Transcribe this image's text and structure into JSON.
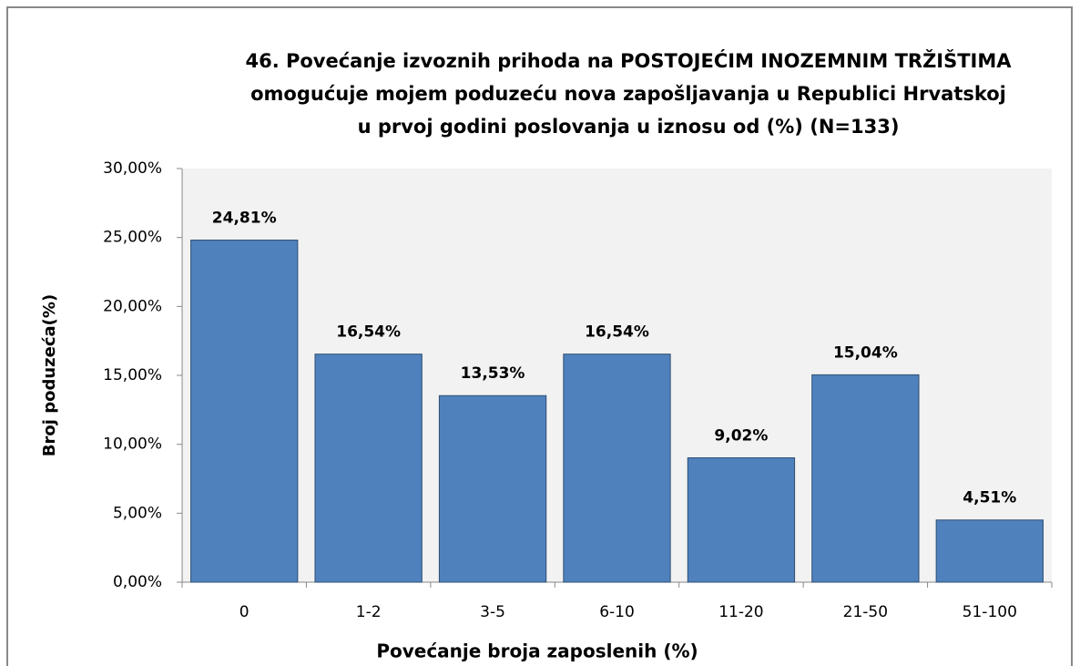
{
  "chart_data": {
    "type": "bar",
    "title": [
      "46. Povećanje izvoznih prihoda na POSTOJEĆIM INOZEMNIM TRŽIŠTIMA",
      "omogućuje mojem poduzeću nova zapošljavanja u Republici Hrvatskoj",
      "u prvoj godini poslovanja u iznosu od (%) (N=133)"
    ],
    "x_label": "Povećanje broja zaposlenih (%)",
    "y_label": "Broj poduzeća(%)",
    "categories": [
      "0",
      "1-2",
      "3-5",
      "6-10",
      "11-20",
      "21-50",
      "51-100"
    ],
    "values": [
      24.81,
      16.54,
      13.53,
      16.54,
      9.02,
      15.04,
      4.51
    ],
    "value_labels": [
      "24,81%",
      "16,54%",
      "13,53%",
      "16,54%",
      "9,02%",
      "15,04%",
      "4,51%"
    ],
    "color": "#4f81bd",
    "ylim": [
      0,
      30
    ],
    "yticks": [
      {
        "value": 0,
        "label": "0,00%"
      },
      {
        "value": 5,
        "label": "5,00%"
      },
      {
        "value": 10,
        "label": "10,00%"
      },
      {
        "value": 15,
        "label": "15,00%"
      },
      {
        "value": 20,
        "label": "20,00%"
      },
      {
        "value": 25,
        "label": "25,00%"
      },
      {
        "value": 30,
        "label": "30,00%"
      }
    ],
    "grid": false
  }
}
